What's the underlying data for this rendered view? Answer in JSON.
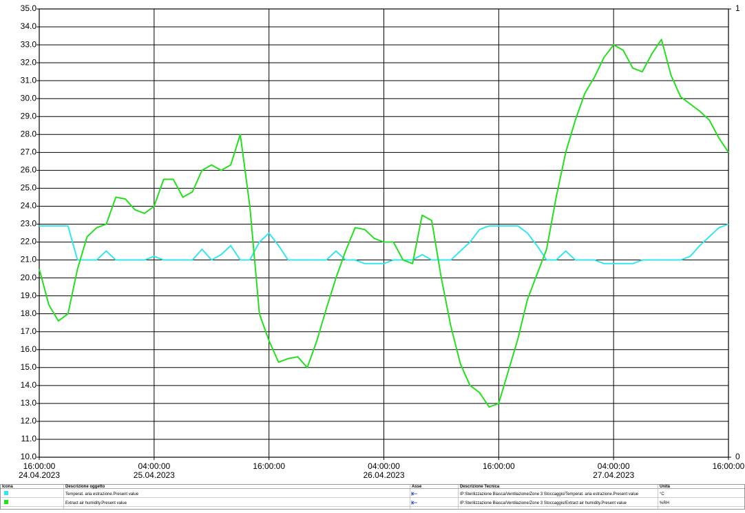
{
  "chart_data": {
    "type": "line",
    "x": [
      "2023-04-24T16:00",
      "2023-04-24T17:00",
      "2023-04-24T18:00",
      "2023-04-24T19:00",
      "2023-04-24T20:00",
      "2023-04-24T21:00",
      "2023-04-24T22:00",
      "2023-04-24T23:00",
      "2023-04-25T00:00",
      "2023-04-25T01:00",
      "2023-04-25T02:00",
      "2023-04-25T03:00",
      "2023-04-25T04:00",
      "2023-04-25T05:00",
      "2023-04-25T06:00",
      "2023-04-25T07:00",
      "2023-04-25T08:00",
      "2023-04-25T09:00",
      "2023-04-25T10:00",
      "2023-04-25T11:00",
      "2023-04-25T12:00",
      "2023-04-25T13:00",
      "2023-04-25T14:00",
      "2023-04-25T15:00",
      "2023-04-25T16:00",
      "2023-04-25T17:00",
      "2023-04-25T18:00",
      "2023-04-25T19:00",
      "2023-04-25T20:00",
      "2023-04-25T21:00",
      "2023-04-25T22:00",
      "2023-04-25T23:00",
      "2023-04-26T00:00",
      "2023-04-26T01:00",
      "2023-04-26T02:00",
      "2023-04-26T03:00",
      "2023-04-26T04:00",
      "2023-04-26T05:00",
      "2023-04-26T06:00",
      "2023-04-26T07:00",
      "2023-04-26T08:00",
      "2023-04-26T09:00",
      "2023-04-26T10:00",
      "2023-04-26T11:00",
      "2023-04-26T12:00",
      "2023-04-26T13:00",
      "2023-04-26T14:00",
      "2023-04-26T15:00",
      "2023-04-26T16:00",
      "2023-04-26T17:00",
      "2023-04-26T18:00",
      "2023-04-26T19:00",
      "2023-04-26T20:00",
      "2023-04-26T21:00",
      "2023-04-26T22:00",
      "2023-04-26T23:00",
      "2023-04-27T00:00",
      "2023-04-27T01:00",
      "2023-04-27T02:00",
      "2023-04-27T03:00",
      "2023-04-27T04:00",
      "2023-04-27T05:00",
      "2023-04-27T06:00",
      "2023-04-27T07:00",
      "2023-04-27T08:00",
      "2023-04-27T09:00",
      "2023-04-27T10:00",
      "2023-04-27T11:00",
      "2023-04-27T12:00",
      "2023-04-27T13:00",
      "2023-04-27T14:00",
      "2023-04-27T15:00",
      "2023-04-27T16:00"
    ],
    "xlim": [
      "2023-04-24T16:00",
      "2023-04-27T16:00"
    ],
    "xticks": [
      {
        "value": "2023-04-24T16:00",
        "label": "16:00:00"
      },
      {
        "value": "2023-04-25T04:00",
        "label": "04:00:00"
      },
      {
        "value": "2023-04-25T16:00",
        "label": "16:00:00"
      },
      {
        "value": "2023-04-26T04:00",
        "label": "04:00:00"
      },
      {
        "value": "2023-04-26T16:00",
        "label": "16:00:00"
      },
      {
        "value": "2023-04-27T04:00",
        "label": "04:00:00"
      },
      {
        "value": "2023-04-27T16:00",
        "label": "16:00:00"
      }
    ],
    "xtick_dates": [
      "24.04.2023",
      "25.04.2023",
      null,
      "26.04.2023",
      null,
      "27.04.2023",
      null
    ],
    "ylim": [
      10,
      35
    ],
    "yticks": [
      {
        "value": 10,
        "label": "10.0"
      },
      {
        "value": 11,
        "label": "11.0"
      },
      {
        "value": 12,
        "label": "12.0"
      },
      {
        "value": 13,
        "label": "13.0"
      },
      {
        "value": 14,
        "label": "14.0"
      },
      {
        "value": 15,
        "label": "15.0"
      },
      {
        "value": 16,
        "label": "16.0"
      },
      {
        "value": 17,
        "label": "17.0"
      },
      {
        "value": 18,
        "label": "18.0"
      },
      {
        "value": 19,
        "label": "19.0"
      },
      {
        "value": 20,
        "label": "20.0"
      },
      {
        "value": 21,
        "label": "21.0"
      },
      {
        "value": 22,
        "label": "22.0"
      },
      {
        "value": 23,
        "label": "23.0"
      },
      {
        "value": 24,
        "label": "24.0"
      },
      {
        "value": 25,
        "label": "25.0"
      },
      {
        "value": 26,
        "label": "26.0"
      },
      {
        "value": 27,
        "label": "27.0"
      },
      {
        "value": 28,
        "label": "28.0"
      },
      {
        "value": 29,
        "label": "29.0"
      },
      {
        "value": 30,
        "label": "30.0"
      },
      {
        "value": 31,
        "label": "31.0"
      },
      {
        "value": 32,
        "label": "32.0"
      },
      {
        "value": 33,
        "label": "33.0"
      },
      {
        "value": 34,
        "label": "34.0"
      },
      {
        "value": 35,
        "label": "35.0"
      }
    ],
    "y2lim": [
      0,
      1
    ],
    "y2ticks": [
      0,
      1
    ],
    "grid": true,
    "columns": [
      "Icona",
      "Descrizione oggetto",
      "Asse",
      "Descrizione Tecnica",
      "Unità"
    ],
    "series": [
      {
        "name": "Temperat. aria estrazione.Present value",
        "description": "IP:Sterilizzazione Biasca/Ventilazione/Zone 3 Stoccaggio/Temperat. aria estrazione.Present value",
        "unit": "°C",
        "color": "#33e5f0",
        "values": [
          22.9,
          22.9,
          22.9,
          22.9,
          21.0,
          21.0,
          21.0,
          21.5,
          21.0,
          21.0,
          21.0,
          21.0,
          21.2,
          21.0,
          21.0,
          21.0,
          21.0,
          21.6,
          21.0,
          21.3,
          21.8,
          21.0,
          21.0,
          22.0,
          22.5,
          21.8,
          21.0,
          21.0,
          21.0,
          21.0,
          21.0,
          21.5,
          21.0,
          21.0,
          20.8,
          20.8,
          20.8,
          21.0,
          21.0,
          21.0,
          21.3,
          21.0,
          21.0,
          21.0,
          21.5,
          22.0,
          22.7,
          22.9,
          22.9,
          22.9,
          22.9,
          22.5,
          21.8,
          21.0,
          21.0,
          21.5,
          21.0,
          21.0,
          21.0,
          20.8,
          20.8,
          20.8,
          20.8,
          21.0,
          21.0,
          21.0,
          21.0,
          21.0,
          21.2,
          21.8,
          22.3,
          22.8,
          23.0
        ]
      },
      {
        "name": "Extract air humidity.Present value",
        "description": "IP:Sterilizzazione Biasca/Ventilazione/Zone 3 Stoccaggio/Extract air humidity.Present value",
        "unit": "%RH",
        "color": "#22e01c",
        "values": [
          20.5,
          18.5,
          17.6,
          18.0,
          20.5,
          22.3,
          22.8,
          23.0,
          24.5,
          24.4,
          23.8,
          23.6,
          24.0,
          25.5,
          25.5,
          24.5,
          24.8,
          26.0,
          26.3,
          26.0,
          26.3,
          28.0,
          24.0,
          18.0,
          16.5,
          15.3,
          15.5,
          15.6,
          15.0,
          16.5,
          18.3,
          20.0,
          21.5,
          22.8,
          22.7,
          22.2,
          22.0,
          22.0,
          21.0,
          20.8,
          23.5,
          23.2,
          20.0,
          17.3,
          15.2,
          14.0,
          13.6,
          12.8,
          13.0,
          14.8,
          16.6,
          18.8,
          20.2,
          21.6,
          24.5,
          27.0,
          28.8,
          30.3,
          31.2,
          32.3,
          33.0,
          32.7,
          31.7,
          31.5,
          32.5,
          33.3,
          31.3,
          30.1,
          29.7,
          29.3,
          28.8,
          27.8,
          27.0
        ]
      }
    ]
  }
}
